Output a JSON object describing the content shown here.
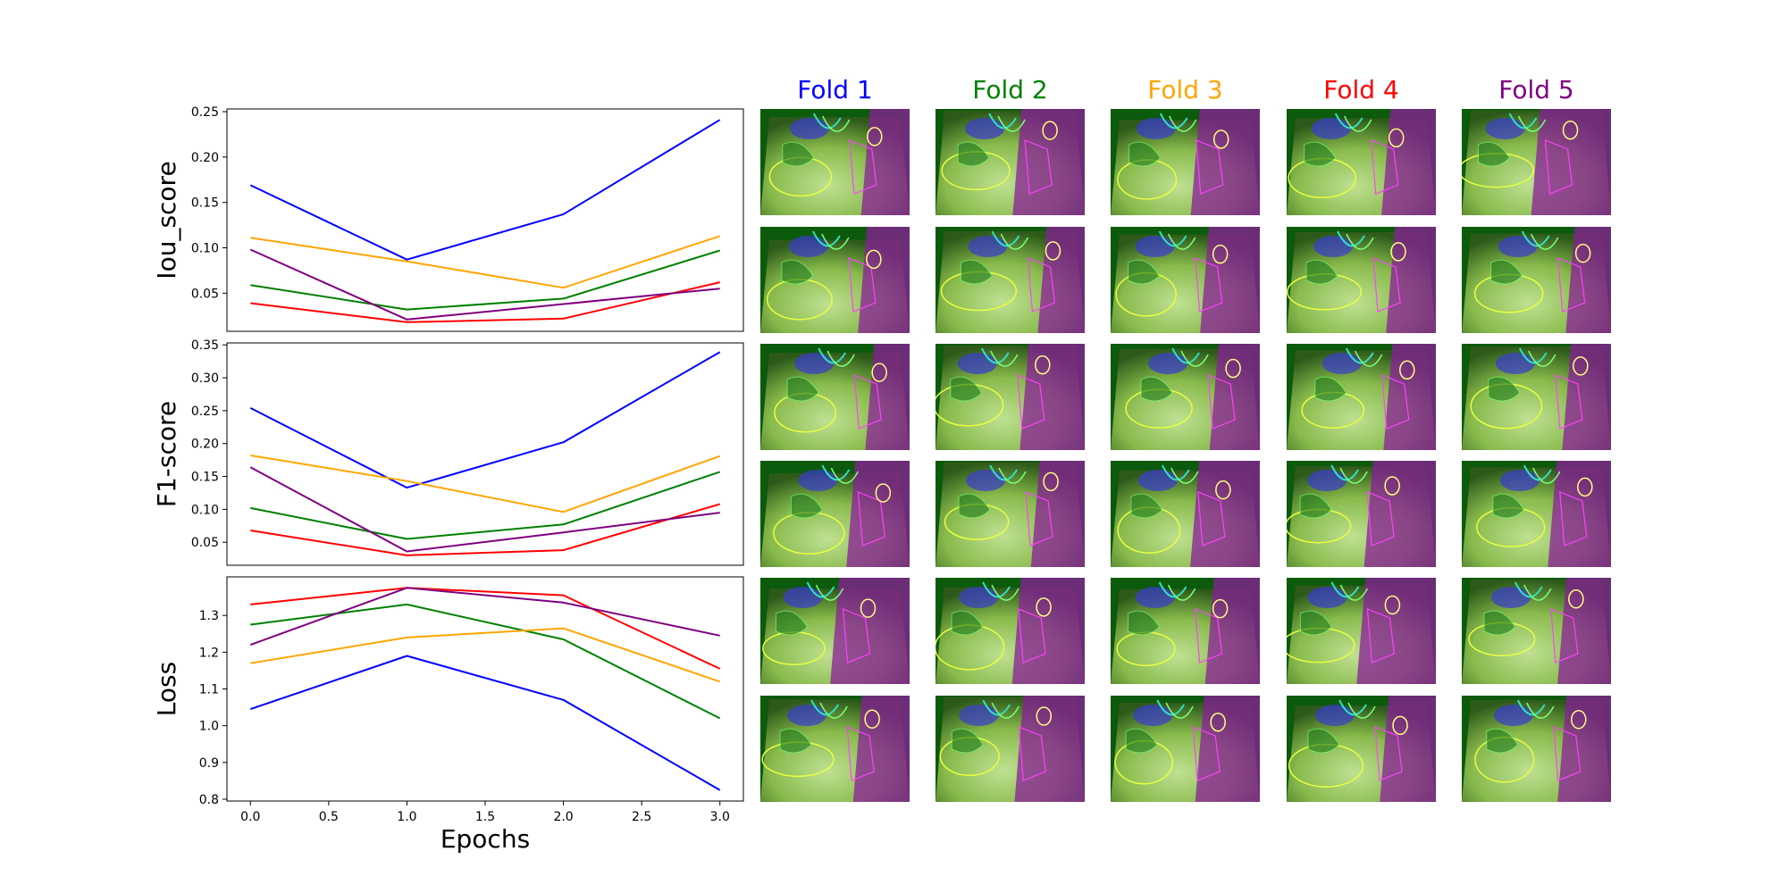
{
  "folds": [
    {
      "label": "Fold 1",
      "color": "#0000ff"
    },
    {
      "label": "Fold 2",
      "color": "#008000"
    },
    {
      "label": "Fold 3",
      "color": "#ffa500"
    },
    {
      "label": "Fold 4",
      "color": "#ff0000"
    },
    {
      "label": "Fold 5",
      "color": "#800080"
    }
  ],
  "image_grid": {
    "rows": 6,
    "cols": 5
  },
  "chart_data": [
    {
      "type": "line",
      "title": "",
      "xlabel": "",
      "ylabel": "Iou_score",
      "x": [
        0,
        1,
        2,
        3
      ],
      "xlim": [
        -0.15,
        3.15
      ],
      "ylim": [
        0.008,
        0.253
      ],
      "yticks": [
        0.05,
        0.1,
        0.15,
        0.2,
        0.25
      ],
      "ytick_labels": [
        "0.05",
        "0.10",
        "0.15",
        "0.20",
        "0.25"
      ],
      "show_xticks": false,
      "grid": false,
      "series": [
        {
          "color": "#0000ff",
          "values": [
            0.169,
            0.087,
            0.137,
            0.241
          ]
        },
        {
          "color": "#008000",
          "values": [
            0.059,
            0.032,
            0.044,
            0.097
          ]
        },
        {
          "color": "#ffa500",
          "values": [
            0.111,
            0.085,
            0.056,
            0.113
          ]
        },
        {
          "color": "#ff0000",
          "values": [
            0.039,
            0.018,
            0.022,
            0.062
          ]
        },
        {
          "color": "#800080",
          "values": [
            0.098,
            0.021,
            0.038,
            0.055
          ]
        }
      ]
    },
    {
      "type": "line",
      "title": "",
      "xlabel": "",
      "ylabel": "F1-score",
      "x": [
        0,
        1,
        2,
        3
      ],
      "xlim": [
        -0.15,
        3.15
      ],
      "ylim": [
        0.015,
        0.353
      ],
      "yticks": [
        0.05,
        0.1,
        0.15,
        0.2,
        0.25,
        0.3,
        0.35
      ],
      "ytick_labels": [
        "0.05",
        "0.10",
        "0.15",
        "0.20",
        "0.25",
        "0.30",
        "0.35"
      ],
      "show_xticks": false,
      "grid": false,
      "series": [
        {
          "color": "#0000ff",
          "values": [
            0.254,
            0.133,
            0.202,
            0.339
          ]
        },
        {
          "color": "#008000",
          "values": [
            0.102,
            0.055,
            0.077,
            0.157
          ]
        },
        {
          "color": "#ffa500",
          "values": [
            0.182,
            0.143,
            0.096,
            0.181
          ]
        },
        {
          "color": "#ff0000",
          "values": [
            0.068,
            0.03,
            0.038,
            0.108
          ]
        },
        {
          "color": "#800080",
          "values": [
            0.164,
            0.036,
            0.065,
            0.095
          ]
        }
      ]
    },
    {
      "type": "line",
      "title": "",
      "xlabel": "Epochs",
      "ylabel": "Loss",
      "x": [
        0,
        1,
        2,
        3
      ],
      "xlim": [
        -0.15,
        3.15
      ],
      "xticks": [
        0.0,
        0.5,
        1.0,
        1.5,
        2.0,
        2.5,
        3.0
      ],
      "xtick_labels": [
        "0.0",
        "0.5",
        "1.0",
        "1.5",
        "2.0",
        "2.5",
        "3.0"
      ],
      "ylim": [
        0.795,
        1.405
      ],
      "yticks": [
        0.8,
        0.9,
        1.0,
        1.1,
        1.2,
        1.3
      ],
      "ytick_labels": [
        "0.8",
        "0.9",
        "1.0",
        "1.1",
        "1.2",
        "1.3"
      ],
      "show_xticks": true,
      "grid": false,
      "series": [
        {
          "color": "#0000ff",
          "values": [
            1.045,
            1.19,
            1.07,
            0.825
          ]
        },
        {
          "color": "#008000",
          "values": [
            1.275,
            1.33,
            1.235,
            1.02
          ]
        },
        {
          "color": "#ffa500",
          "values": [
            1.17,
            1.24,
            1.265,
            1.12
          ]
        },
        {
          "color": "#ff0000",
          "values": [
            1.33,
            1.375,
            1.355,
            1.155
          ]
        },
        {
          "color": "#800080",
          "values": [
            1.22,
            1.375,
            1.335,
            1.245
          ]
        }
      ]
    }
  ]
}
